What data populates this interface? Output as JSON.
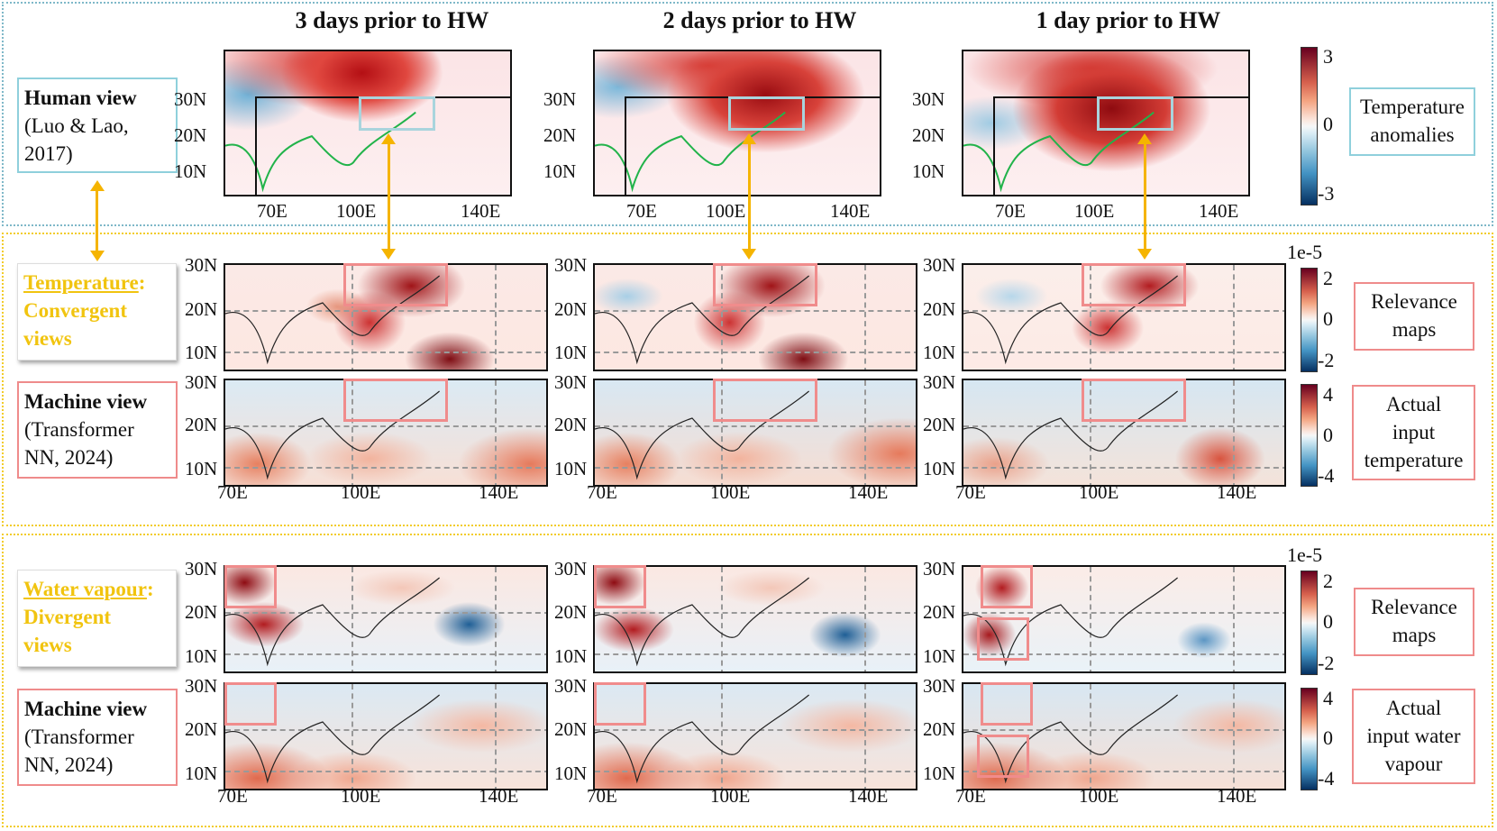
{
  "column_headers": [
    "3 days prior to HW",
    "2 days prior to HW",
    "1 day prior to HW"
  ],
  "row_labels": {
    "human": {
      "title": "Human view",
      "sub1": "(Luo & Lao,",
      "sub2": "2017)"
    },
    "temp_convergent": {
      "title": "Temperature",
      "colon": ":",
      "line2": "Convergent",
      "line3": "views"
    },
    "machine_temp": {
      "title": "Machine view",
      "sub1": "(Transformer",
      "sub2": "NN, 2024)"
    },
    "wv_divergent": {
      "title": "Water vapour",
      "colon": ":",
      "line2": "Divergent",
      "line3": "views"
    },
    "machine_wv": {
      "title": "Machine view",
      "sub1": "(Transformer",
      "sub2": "NN, 2024)"
    }
  },
  "axes": {
    "lat_ticks": [
      "30N",
      "20N",
      "10N"
    ],
    "lon_ticks_human": [
      "70E",
      "100E",
      "140E"
    ],
    "lon_ticks": [
      "70E",
      "100E",
      "140E"
    ]
  },
  "colorbars": {
    "temperature_anomalies": {
      "max": "3",
      "mid": "0",
      "min": "-3",
      "label_line1": "Temperature",
      "label_line2": "anomalies"
    },
    "relevance_temp": {
      "scale": "1e-5",
      "max": "2",
      "mid": "0",
      "min": "-2",
      "label_line1": "Relevance",
      "label_line2": "maps"
    },
    "input_temp": {
      "max": "4",
      "mid": "0",
      "min": "-4",
      "label_line1": "Actual",
      "label_line2": "input",
      "label_line3": "temperature"
    },
    "relevance_wv": {
      "scale": "1e-5",
      "max": "2",
      "mid": "0",
      "min": "-2",
      "label_line1": "Relevance",
      "label_line2": "maps"
    },
    "input_wv": {
      "max": "4",
      "mid": "0",
      "min": "-4",
      "label_line1": "Actual",
      "label_line2": "input water",
      "label_line3": "vapour"
    }
  },
  "colors": {
    "highlight_red": "#f08c8c",
    "highlight_cyan": "#a9d4dd",
    "arrow_yellow": "#f5b400",
    "section_yellow": "#f2cc2a",
    "section_blue": "#7fb8c8"
  }
}
